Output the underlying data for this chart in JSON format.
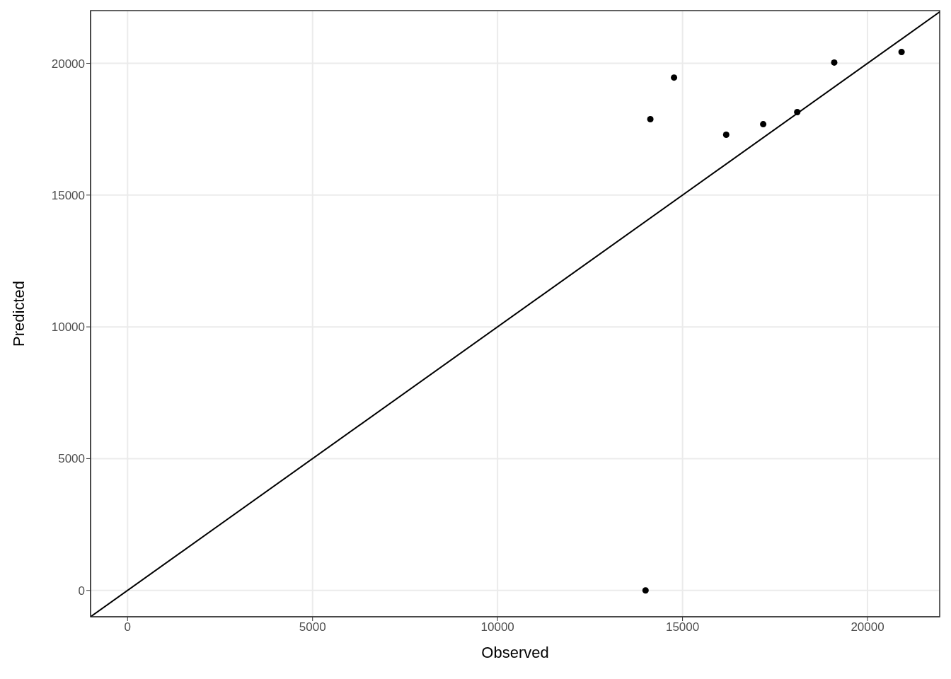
{
  "chart_data": {
    "type": "scatter",
    "xlabel": "Observed",
    "ylabel": "Predicted",
    "series": [
      {
        "color": "#000000",
        "marker": "circle",
        "x": [
          14000,
          14130,
          14770,
          16180,
          17180,
          18100,
          19100,
          20920
        ],
        "values": [
          0,
          17880,
          19460,
          17290,
          17690,
          18150,
          20030,
          20430
        ]
      },
      {
        "type": "line",
        "color": "#000000",
        "marker": "none",
        "x": [
          -1000,
          21950
        ],
        "values": [
          -1000,
          21950
        ]
      }
    ],
    "xlim": [
      -1000,
      21950
    ],
    "ylim": [
      -1000,
      22000
    ],
    "xticks": [
      0,
      5000,
      10000,
      15000,
      20000
    ],
    "yticks": [
      0,
      5000,
      10000,
      15000,
      20000
    ],
    "grid": true,
    "line_style": "solid"
  }
}
